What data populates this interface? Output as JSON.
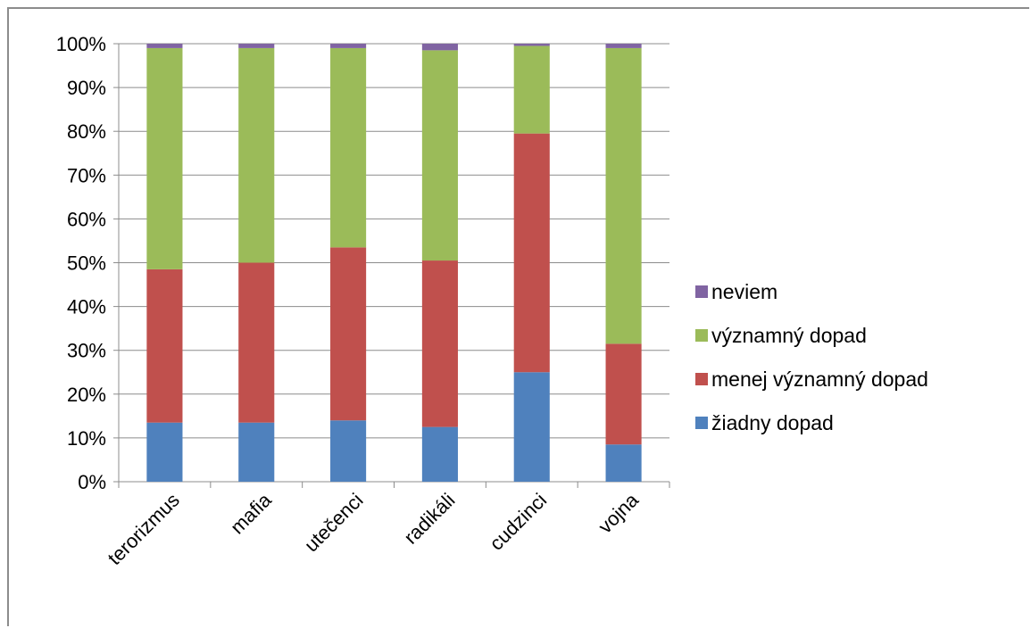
{
  "chart_data": {
    "type": "bar",
    "stacked": "percent",
    "categories": [
      "terorizmus",
      "mafia",
      "utečenci",
      "radikáli",
      "cudzinci",
      "vojna"
    ],
    "series": [
      {
        "name": "žiadny dopad",
        "color": "#4f81bd",
        "values": [
          13.5,
          13.5,
          14,
          12.5,
          25,
          8.5
        ]
      },
      {
        "name": "menej významný dopad",
        "color": "#c0504d",
        "values": [
          35,
          36.5,
          39.5,
          38,
          54.5,
          23
        ]
      },
      {
        "name": "významný dopad",
        "color": "#9bbb59",
        "values": [
          50.5,
          49,
          45.5,
          48,
          20,
          67.5
        ]
      },
      {
        "name": "neviem",
        "color": "#8064a2",
        "values": [
          1,
          1,
          1,
          1.5,
          0.5,
          1
        ]
      }
    ],
    "yticks": [
      "0%",
      "10%",
      "20%",
      "30%",
      "40%",
      "50%",
      "60%",
      "70%",
      "80%",
      "90%",
      "100%"
    ],
    "ylim": [
      0,
      100
    ],
    "grid": true,
    "legend_position": "right",
    "legend_order": [
      "neviem",
      "významný dopad",
      "menej významný dopad",
      "žiadny dopad"
    ]
  }
}
